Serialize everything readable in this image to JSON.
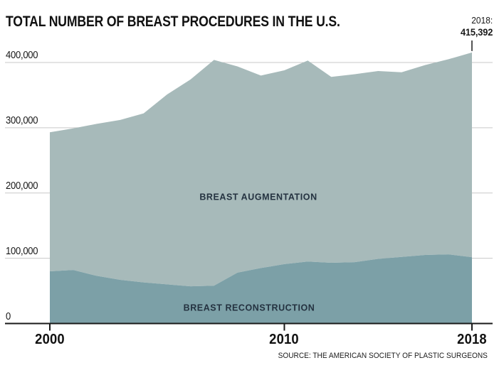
{
  "chart_data": {
    "type": "area",
    "stacked": true,
    "title": "TOTAL NUMBER OF BREAST PROCEDURES IN THE U.S.",
    "source": "SOURCE: THE AMERICAN SOCIETY OF PLASTIC SURGEONS",
    "annotation": {
      "line1": "2018:",
      "line2": "415,392",
      "x": 2018,
      "total": 415392
    },
    "x": [
      2000,
      2001,
      2002,
      2003,
      2004,
      2005,
      2006,
      2007,
      2008,
      2009,
      2010,
      2011,
      2012,
      2013,
      2014,
      2015,
      2016,
      2017,
      2018
    ],
    "series": [
      {
        "name": "BREAST RECONSTRUCTION",
        "color": "#7ca0a7",
        "values": [
          80000,
          82000,
          73000,
          67000,
          63000,
          60000,
          57000,
          58000,
          78000,
          85000,
          91000,
          95000,
          93000,
          94000,
          99000,
          102000,
          105000,
          106000,
          101657
        ]
      },
      {
        "name": "BREAST AUGMENTATION",
        "color": "#a7baba",
        "values": [
          213000,
          217000,
          233000,
          245000,
          259000,
          291000,
          317000,
          346000,
          316000,
          295000,
          297000,
          308000,
          285000,
          288000,
          288000,
          283000,
          291000,
          299000,
          313735
        ]
      }
    ],
    "ylim": [
      0,
      400000
    ],
    "yticks": [
      {
        "value": 0,
        "label": "0"
      },
      {
        "value": 100000,
        "label": "100,000"
      },
      {
        "value": 200000,
        "label": "200,000"
      },
      {
        "value": 300000,
        "label": "300,000"
      },
      {
        "value": 400000,
        "label": "400,000"
      }
    ],
    "xticks": [
      {
        "value": 2000,
        "label": "2000"
      },
      {
        "value": 2010,
        "label": "2010"
      },
      {
        "value": 2018,
        "label": "2018"
      }
    ],
    "grid": true,
    "legend": "labels-inside-areas"
  },
  "colors": {
    "background": "#ffffff",
    "grid": "#c9c9c9",
    "axis": "#1a1a1a",
    "series_label_text": "#243240",
    "title_text": "#111111"
  }
}
